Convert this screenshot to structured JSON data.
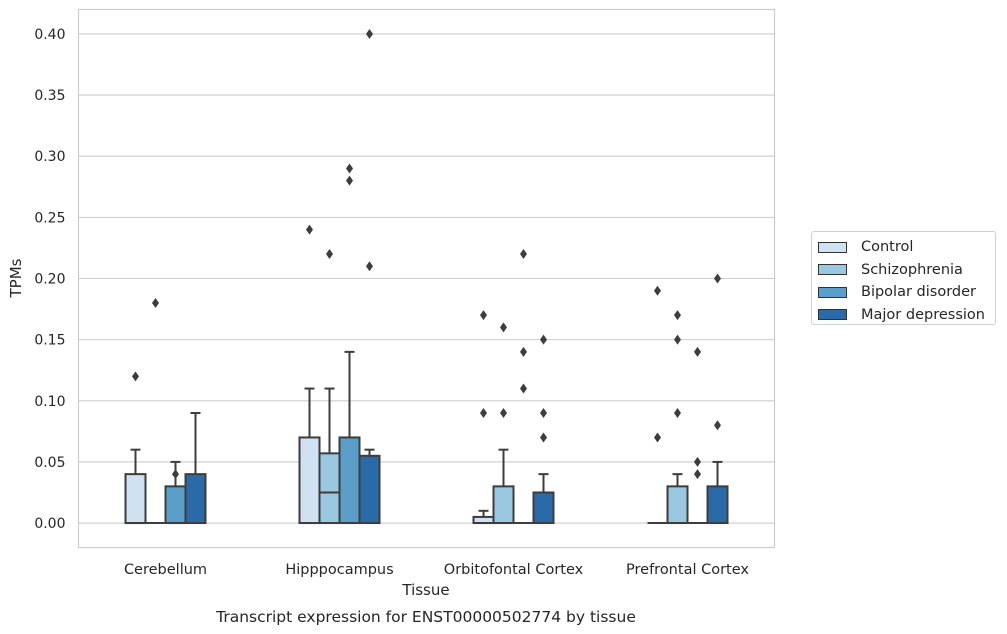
{
  "chart_data": {
    "type": "box",
    "title": "Transcript expression for ENST00000502774 by tissue",
    "xlabel": "Tissue",
    "ylabel": "TPMs",
    "ylim": [
      -0.02,
      0.42
    ],
    "yticks": [
      0.0,
      0.05,
      0.1,
      0.15,
      0.2,
      0.25,
      0.3,
      0.35,
      0.4
    ],
    "ytick_labels": [
      "0.00",
      "0.05",
      "0.10",
      "0.15",
      "0.20",
      "0.25",
      "0.30",
      "0.35",
      "0.40"
    ],
    "grid": "horizontal",
    "legend_position": "right",
    "categories": [
      "Cerebellum",
      "Hipppocampus",
      "Orbitofontal Cortex",
      "Prefrontal Cortex"
    ],
    "series": [
      {
        "name": "Control",
        "color": "#d0e1f2",
        "boxes": [
          {
            "q1": 0.0,
            "median": 0.0,
            "q3": 0.04,
            "whisker_low": 0.0,
            "whisker_high": 0.06,
            "outliers": [
              0.12
            ]
          },
          {
            "q1": 0.0,
            "median": 0.0,
            "q3": 0.07,
            "whisker_low": 0.0,
            "whisker_high": 0.11,
            "outliers": [
              0.24
            ]
          },
          {
            "q1": 0.0,
            "median": 0.0,
            "q3": 0.005,
            "whisker_low": 0.0,
            "whisker_high": 0.01,
            "outliers": [
              0.09,
              0.17
            ]
          },
          {
            "q1": 0.0,
            "median": 0.0,
            "q3": 0.0,
            "whisker_low": 0.0,
            "whisker_high": 0.0,
            "outliers": [
              0.07,
              0.19
            ]
          }
        ]
      },
      {
        "name": "Schizophrenia",
        "color": "#9ac8e0",
        "boxes": [
          {
            "q1": 0.0,
            "median": 0.0,
            "q3": 0.0,
            "whisker_low": 0.0,
            "whisker_high": 0.0,
            "outliers": [
              0.18
            ]
          },
          {
            "q1": 0.0,
            "median": 0.025,
            "q3": 0.057,
            "whisker_low": 0.0,
            "whisker_high": 0.11,
            "outliers": [
              0.22
            ]
          },
          {
            "q1": 0.0,
            "median": 0.0,
            "q3": 0.03,
            "whisker_low": 0.0,
            "whisker_high": 0.06,
            "outliers": [
              0.09,
              0.16
            ]
          },
          {
            "q1": 0.0,
            "median": 0.0,
            "q3": 0.03,
            "whisker_low": 0.0,
            "whisker_high": 0.04,
            "outliers": [
              0.09,
              0.15,
              0.17
            ]
          }
        ]
      },
      {
        "name": "Bipolar disorder",
        "color": "#5a9ec9",
        "boxes": [
          {
            "q1": 0.0,
            "median": 0.0,
            "q3": 0.03,
            "whisker_low": 0.0,
            "whisker_high": 0.05,
            "outliers": [
              0.04
            ]
          },
          {
            "q1": 0.0,
            "median": 0.0,
            "q3": 0.07,
            "whisker_low": 0.0,
            "whisker_high": 0.14,
            "outliers": [
              0.28,
              0.29
            ]
          },
          {
            "q1": 0.0,
            "median": 0.0,
            "q3": 0.0,
            "whisker_low": 0.0,
            "whisker_high": 0.0,
            "outliers": [
              0.11,
              0.14,
              0.22
            ]
          },
          {
            "q1": 0.0,
            "median": 0.0,
            "q3": 0.0,
            "whisker_low": 0.0,
            "whisker_high": 0.0,
            "outliers": [
              0.04,
              0.05,
              0.14
            ]
          }
        ]
      },
      {
        "name": "Major depression",
        "color": "#2b6aa8",
        "boxes": [
          {
            "q1": 0.0,
            "median": 0.0,
            "q3": 0.04,
            "whisker_low": 0.0,
            "whisker_high": 0.09,
            "outliers": []
          },
          {
            "q1": 0.0,
            "median": 0.0,
            "q3": 0.055,
            "whisker_low": 0.0,
            "whisker_high": 0.06,
            "outliers": [
              0.21,
              0.4
            ]
          },
          {
            "q1": 0.0,
            "median": 0.0,
            "q3": 0.025,
            "whisker_low": 0.0,
            "whisker_high": 0.04,
            "outliers": [
              0.07,
              0.09,
              0.15
            ]
          },
          {
            "q1": 0.0,
            "median": 0.0,
            "q3": 0.03,
            "whisker_low": 0.0,
            "whisker_high": 0.05,
            "outliers": [
              0.08,
              0.2
            ]
          }
        ]
      }
    ]
  }
}
